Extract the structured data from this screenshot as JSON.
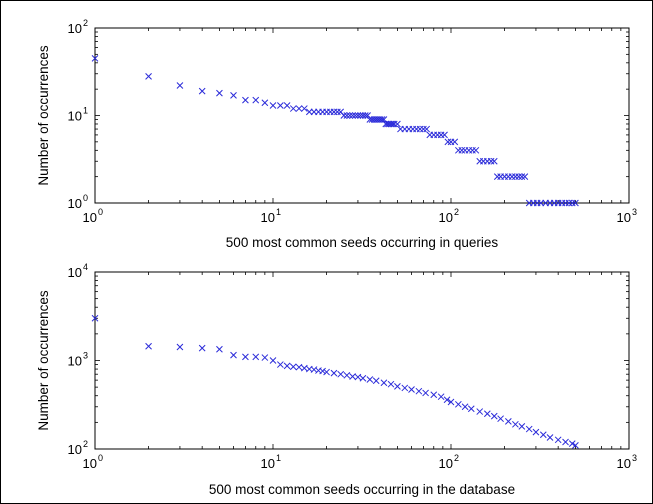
{
  "chart_data": [
    {
      "type": "scatter",
      "xscale": "log",
      "yscale": "log",
      "xlim": [
        1,
        1000
      ],
      "ylim": [
        1,
        100
      ],
      "xlabel": "500 most common seeds occurring in queries",
      "ylabel": "Number of occurrences",
      "x_ticks": [
        {
          "base": "10",
          "exp": "0"
        },
        {
          "base": "10",
          "exp": "1"
        },
        {
          "base": "10",
          "exp": "2"
        },
        {
          "base": "10",
          "exp": "3"
        }
      ],
      "y_ticks": [
        {
          "base": "10",
          "exp": "0"
        },
        {
          "base": "10",
          "exp": "1"
        },
        {
          "base": "10",
          "exp": "2"
        }
      ],
      "marker": "x",
      "color": "#2b2bd9",
      "grid": false,
      "series": [
        {
          "points": [
            [
              1,
              45
            ],
            [
              2,
              28
            ],
            [
              3,
              22
            ],
            [
              4,
              19
            ],
            [
              5,
              18
            ],
            [
              6,
              17
            ],
            [
              7,
              15
            ],
            [
              8,
              15
            ],
            [
              9,
              14
            ],
            [
              10,
              13
            ],
            [
              11,
              13
            ],
            [
              12,
              13
            ],
            [
              13,
              12
            ],
            [
              14,
              12
            ],
            [
              15,
              12
            ],
            [
              16,
              11
            ],
            [
              17,
              11
            ],
            [
              18,
              11
            ],
            [
              19,
              11
            ],
            [
              20,
              11
            ],
            [
              21,
              11
            ],
            [
              22,
              11
            ],
            [
              23,
              11
            ],
            [
              24,
              11
            ],
            [
              25,
              10
            ],
            [
              26,
              10
            ],
            [
              27,
              10
            ],
            [
              28,
              10
            ],
            [
              29,
              10
            ],
            [
              30,
              10
            ],
            [
              31,
              10
            ],
            [
              32,
              10
            ],
            [
              33,
              10
            ],
            [
              34,
              10
            ],
            [
              35,
              9
            ],
            [
              36,
              9
            ],
            [
              37,
              9
            ],
            [
              38,
              9
            ],
            [
              39,
              9
            ],
            [
              40,
              9
            ],
            [
              41,
              9
            ],
            [
              42,
              9
            ],
            [
              43,
              8
            ],
            [
              44,
              8
            ],
            [
              45,
              8
            ],
            [
              46,
              8
            ],
            [
              47,
              8
            ],
            [
              48,
              8
            ],
            [
              50,
              8
            ],
            [
              52,
              7
            ],
            [
              55,
              7
            ],
            [
              58,
              7
            ],
            [
              61,
              7
            ],
            [
              64,
              7
            ],
            [
              67,
              7
            ],
            [
              70,
              7
            ],
            [
              73,
              7
            ],
            [
              76,
              6
            ],
            [
              80,
              6
            ],
            [
              84,
              6
            ],
            [
              88,
              6
            ],
            [
              92,
              6
            ],
            [
              96,
              5
            ],
            [
              100,
              5
            ],
            [
              105,
              5
            ],
            [
              110,
              4
            ],
            [
              115,
              4
            ],
            [
              120,
              4
            ],
            [
              126,
              4
            ],
            [
              132,
              4
            ],
            [
              138,
              4
            ],
            [
              145,
              3
            ],
            [
              152,
              3
            ],
            [
              160,
              3
            ],
            [
              168,
              3
            ],
            [
              175,
              3
            ],
            [
              182,
              2
            ],
            [
              190,
              2
            ],
            [
              200,
              2
            ],
            [
              210,
              2
            ],
            [
              220,
              2
            ],
            [
              230,
              2
            ],
            [
              240,
              2
            ],
            [
              250,
              2
            ],
            [
              260,
              2
            ],
            [
              275,
              1
            ],
            [
              290,
              1
            ],
            [
              305,
              1
            ],
            [
              320,
              1
            ],
            [
              340,
              1
            ],
            [
              360,
              1
            ],
            [
              380,
              1
            ],
            [
              400,
              1
            ],
            [
              420,
              1
            ],
            [
              440,
              1
            ],
            [
              460,
              1
            ],
            [
              480,
              1
            ],
            [
              500,
              1
            ]
          ]
        }
      ]
    },
    {
      "type": "scatter",
      "xscale": "log",
      "yscale": "log",
      "xlim": [
        1,
        1000
      ],
      "ylim": [
        100,
        10000
      ],
      "xlabel": "500 most common seeds occurring in the database",
      "ylabel": "Number of occurrences",
      "x_ticks": [
        {
          "base": "10",
          "exp": "0"
        },
        {
          "base": "10",
          "exp": "1"
        },
        {
          "base": "10",
          "exp": "2"
        },
        {
          "base": "10",
          "exp": "3"
        }
      ],
      "y_ticks": [
        {
          "base": "10",
          "exp": "2"
        },
        {
          "base": "10",
          "exp": "3"
        },
        {
          "base": "10",
          "exp": "4"
        }
      ],
      "marker": "x",
      "color": "#2b2bd9",
      "grid": false,
      "series": [
        {
          "points": [
            [
              1,
              3000
            ],
            [
              2,
              1450
            ],
            [
              3,
              1420
            ],
            [
              4,
              1380
            ],
            [
              5,
              1340
            ],
            [
              6,
              1150
            ],
            [
              7,
              1100
            ],
            [
              8,
              1100
            ],
            [
              9,
              1080
            ],
            [
              10,
              1000
            ],
            [
              11,
              900
            ],
            [
              12,
              870
            ],
            [
              13,
              850
            ],
            [
              14,
              840
            ],
            [
              15,
              820
            ],
            [
              16,
              800
            ],
            [
              17,
              790
            ],
            [
              18,
              770
            ],
            [
              19,
              760
            ],
            [
              20,
              740
            ],
            [
              22,
              720
            ],
            [
              24,
              700
            ],
            [
              26,
              680
            ],
            [
              28,
              660
            ],
            [
              30,
              650
            ],
            [
              32,
              630
            ],
            [
              35,
              610
            ],
            [
              38,
              590
            ],
            [
              42,
              560
            ],
            [
              46,
              540
            ],
            [
              50,
              510
            ],
            [
              55,
              490
            ],
            [
              60,
              470
            ],
            [
              66,
              450
            ],
            [
              72,
              430
            ],
            [
              80,
              410
            ],
            [
              88,
              390
            ],
            [
              95,
              360
            ],
            [
              100,
              340
            ],
            [
              110,
              320
            ],
            [
              120,
              300
            ],
            [
              130,
              285
            ],
            [
              145,
              265
            ],
            [
              160,
              250
            ],
            [
              175,
              235
            ],
            [
              190,
              220
            ],
            [
              210,
              205
            ],
            [
              230,
              190
            ],
            [
              250,
              180
            ],
            [
              275,
              168
            ],
            [
              300,
              155
            ],
            [
              330,
              145
            ],
            [
              360,
              135
            ],
            [
              400,
              127
            ],
            [
              440,
              120
            ],
            [
              480,
              115
            ],
            [
              500,
              110
            ]
          ]
        }
      ]
    }
  ]
}
